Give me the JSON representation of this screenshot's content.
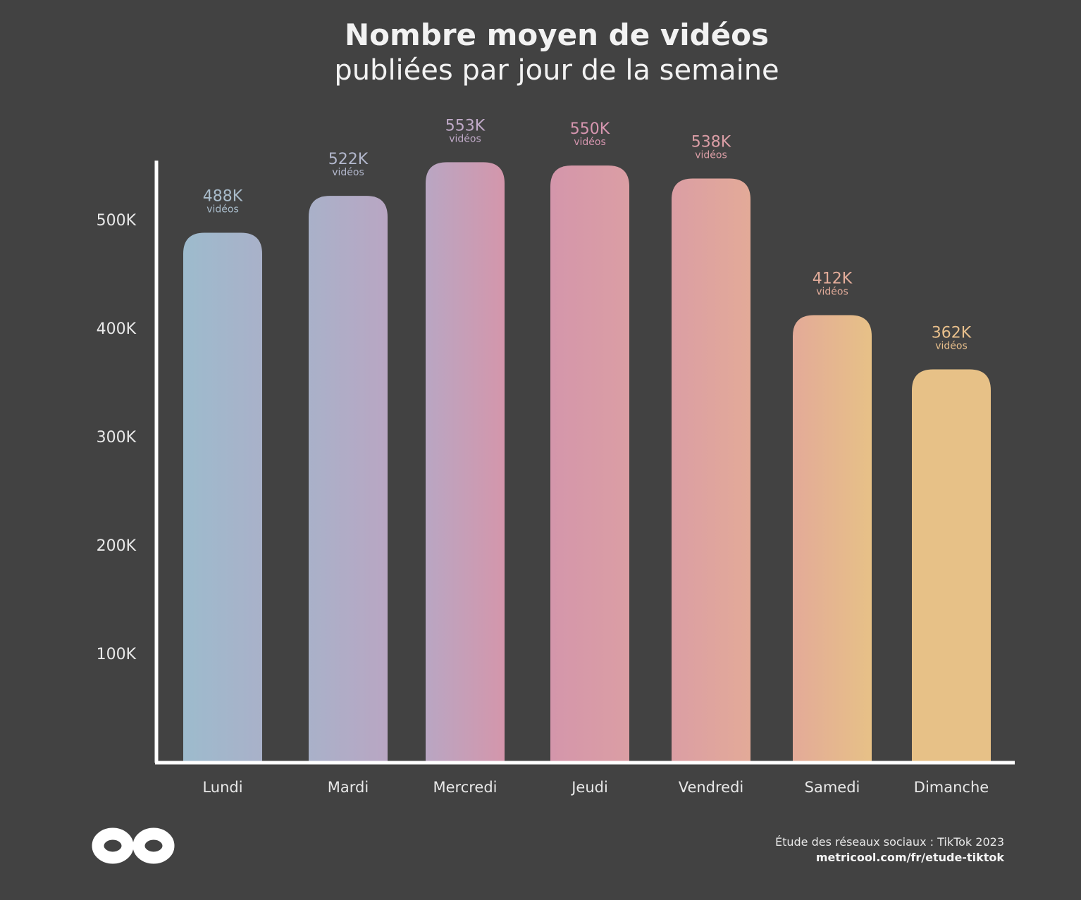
{
  "chart_data": {
    "type": "bar",
    "title": "Nombre moyen de vidéos",
    "subtitle": "publiées par jour de la semaine",
    "categories": [
      "Lundi",
      "Mardi",
      "Mercredi",
      "Jeudi",
      "Vendredi",
      "Samedi",
      "Dimanche"
    ],
    "values": [
      488000,
      522000,
      553000,
      550000,
      538000,
      412000,
      362000
    ],
    "data_labels": [
      "488K",
      "522K",
      "553K",
      "550K",
      "538K",
      "412K",
      "362K"
    ],
    "data_label_unit": "vidéos",
    "y_ticks": [
      "100K",
      "200K",
      "300K",
      "400K",
      "500K"
    ],
    "y_tick_values": [
      100000,
      200000,
      300000,
      400000,
      500000
    ],
    "ylim": [
      0,
      560000
    ],
    "xlabel": "",
    "ylabel": "",
    "grid": false,
    "legend": "none",
    "colors": [
      "#9dbbcd",
      "#a9b1c9",
      "#b9a6c3",
      "#d496ab",
      "#db9ea4",
      "#e3aa98",
      "#e7c187"
    ],
    "label_colors": [
      "#a9bccb",
      "#b2b7cc",
      "#c0aac8",
      "#d796b0",
      "#db9ea6",
      "#e3ac9a",
      "#e9c08c"
    ]
  },
  "source": {
    "line1": "Étude des réseaux sociaux : TikTok 2023",
    "line2": "metricool.com/fr/etude-tiktok"
  },
  "logo": {
    "name": "metricool-infinity-logo"
  }
}
